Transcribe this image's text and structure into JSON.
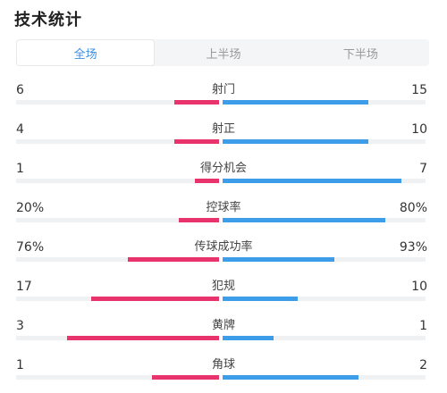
{
  "title": "技术统计",
  "tabs": [
    {
      "label": "全场",
      "active": true
    },
    {
      "label": "上半场",
      "active": false
    },
    {
      "label": "下半场",
      "active": false
    }
  ],
  "colors": {
    "home": "#e8336d",
    "away": "#3d9de8",
    "active_tab": "#3a8ee6"
  },
  "stats": [
    {
      "name": "射门",
      "home": "6",
      "away": "15",
      "home_fill": 0.22,
      "away_fill": 0.72
    },
    {
      "name": "射正",
      "home": "4",
      "away": "10",
      "home_fill": 0.22,
      "away_fill": 0.72
    },
    {
      "name": "得分机会",
      "home": "1",
      "away": "7",
      "home_fill": 0.12,
      "away_fill": 0.88
    },
    {
      "name": "控球率",
      "home": "20%",
      "away": "80%",
      "home_fill": 0.2,
      "away_fill": 0.8
    },
    {
      "name": "传球成功率",
      "home": "76%",
      "away": "93%",
      "home_fill": 0.45,
      "away_fill": 0.55
    },
    {
      "name": "犯规",
      "home": "17",
      "away": "10",
      "home_fill": 0.63,
      "away_fill": 0.37
    },
    {
      "name": "黄牌",
      "home": "3",
      "away": "1",
      "home_fill": 0.75,
      "away_fill": 0.25
    },
    {
      "name": "角球",
      "home": "1",
      "away": "2",
      "home_fill": 0.33,
      "away_fill": 0.67
    }
  ]
}
